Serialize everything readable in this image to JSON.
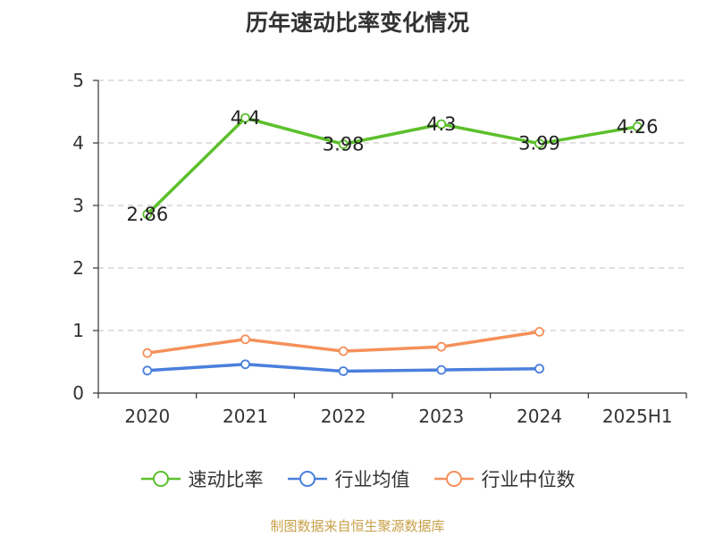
{
  "title": "历年速动比率变化情况",
  "source": "制图数据来自恒生聚源数据库",
  "colors": {
    "source_text": "#c8a04a",
    "axis": "#333333",
    "grid": "#cccccc"
  },
  "chart_data": {
    "type": "line",
    "categories": [
      "2020",
      "2021",
      "2022",
      "2023",
      "2024",
      "2025H1"
    ],
    "ylim": [
      0,
      5
    ],
    "yticks": [
      0,
      1,
      2,
      3,
      4,
      5
    ],
    "grid": "horizontal-dashed",
    "legend_position": "bottom",
    "series": [
      {
        "name": "速动比率",
        "color": "#5cc02c",
        "values": [
          2.86,
          4.4,
          3.98,
          4.3,
          3.99,
          4.26
        ],
        "labels": [
          "2.86",
          "4.4",
          "3.98",
          "4.3",
          "3.99",
          "4.26"
        ]
      },
      {
        "name": "行业均值",
        "color": "#4a7fdc",
        "values": [
          0.36,
          0.46,
          0.35,
          0.37,
          0.39,
          null
        ]
      },
      {
        "name": "行业中位数",
        "color": "#f5905a",
        "values": [
          0.64,
          0.86,
          0.67,
          0.74,
          0.98,
          null
        ]
      }
    ]
  }
}
